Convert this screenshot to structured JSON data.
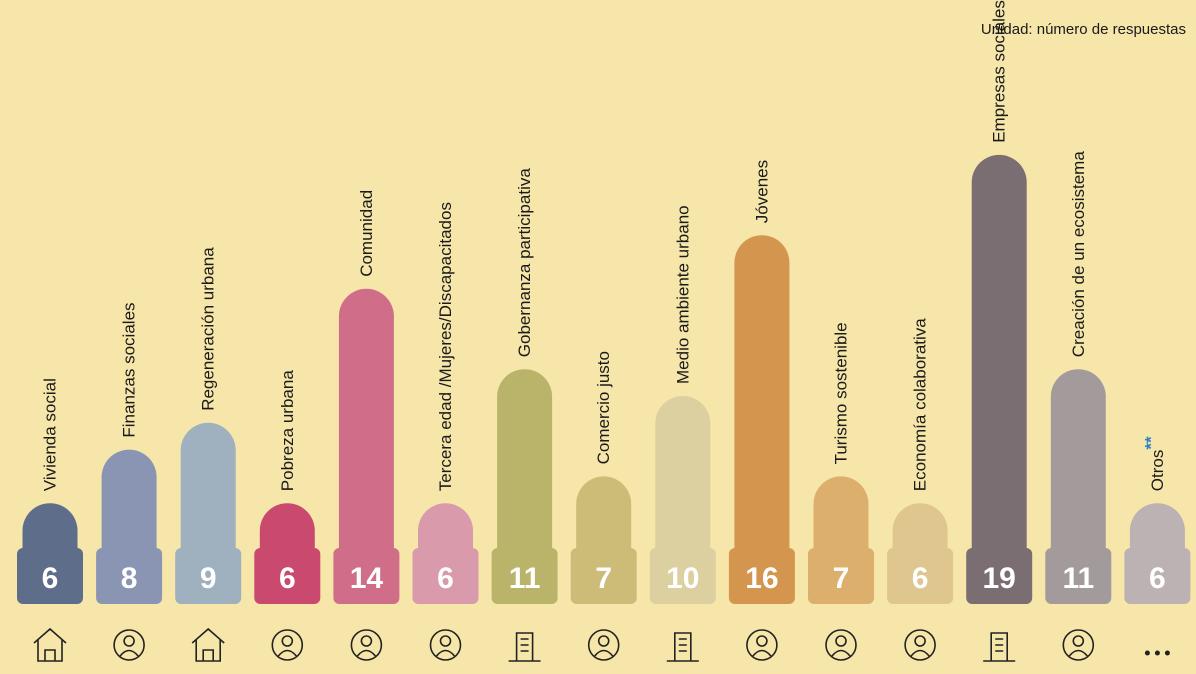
{
  "chart_data": {
    "type": "bar",
    "subtitle": "Unidad: número de respuestas",
    "categories": [
      "Vivienda social",
      "Finanzas sociales",
      "Regeneración urbana",
      "Pobreza urbana",
      "Comunidad",
      "Tercera edad /Mujeres/Discapacitados",
      "Gobernanza participativa",
      "Comercio justo",
      "Medio ambiente urbano",
      "Jóvenes",
      "Turismo sostenible",
      "Economía colaborativa",
      "Empresas sociales/cooperativas",
      "Creación de un ecosistema",
      "Otros"
    ],
    "values": [
      6,
      8,
      9,
      6,
      14,
      6,
      11,
      7,
      10,
      16,
      7,
      6,
      19,
      11,
      6
    ],
    "colors": [
      "#5e6d8a",
      "#8a95b3",
      "#9fb0be",
      "#c94a6e",
      "#d06d88",
      "#d99aab",
      "#b9b46a",
      "#cdbb78",
      "#ddd0a0",
      "#d4964e",
      "#dcb06c",
      "#dfc68e",
      "#7b6e72",
      "#a39a9b",
      "#bcb2b4"
    ],
    "footnote_mark": "**"
  }
}
